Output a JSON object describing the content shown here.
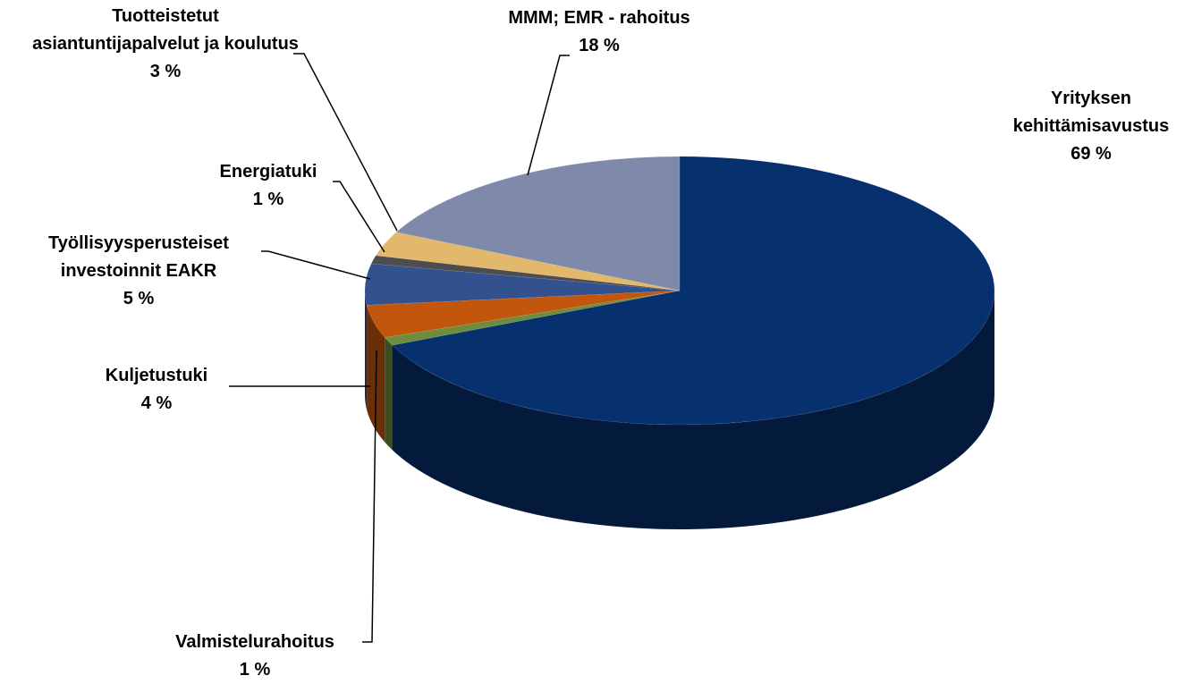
{
  "chart_data": {
    "type": "pie",
    "categories": [
      "Yrityksen kehittämisavustus",
      "Valmistelurahoitus",
      "Kuljetustuki",
      "Työllisyysperusteiset investoinnit EAKR",
      "Energiatuki",
      "Tuotteistetut asiantuntijapalvelut ja koulutus",
      "MMM; EMR - rahoitus"
    ],
    "values": [
      69,
      1,
      4,
      5,
      1,
      3,
      18
    ],
    "value_labels": [
      "69 %",
      "1 %",
      "4 %",
      "5 %",
      "1 %",
      "3 %",
      "18 %"
    ],
    "colors": [
      "#07306f",
      "#6d8d3c",
      "#c2560c",
      "#33508f",
      "#4d4d4d",
      "#e2b86c",
      "#7f8aab"
    ]
  }
}
